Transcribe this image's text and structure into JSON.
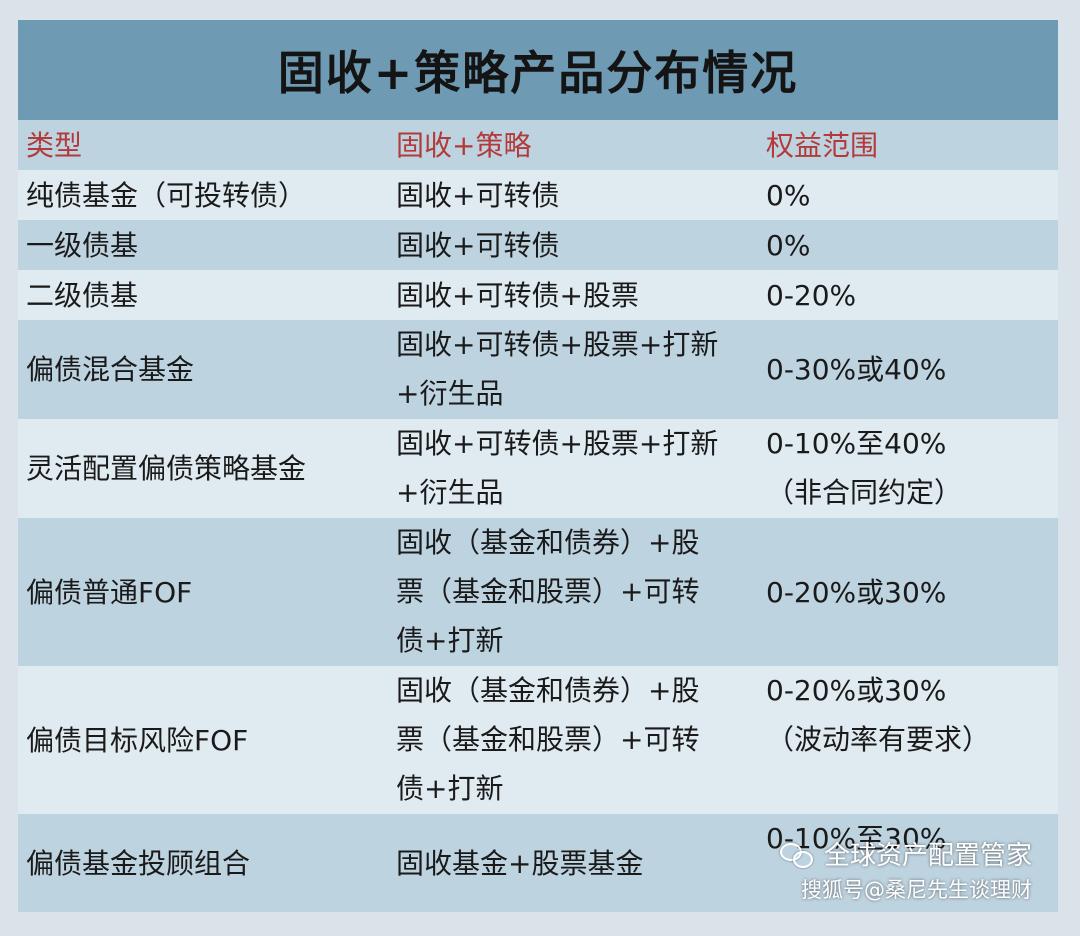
{
  "title": "固收+策略产品分布情况",
  "headers": [
    "类型",
    "固收+策略",
    "权益范围"
  ],
  "rows": [
    {
      "type": "纯债基金（可投转债）",
      "strategy": [
        "固收+可转债"
      ],
      "equity": [
        "0%"
      ]
    },
    {
      "type": "一级债基",
      "strategy": [
        "固收+可转债"
      ],
      "equity": [
        "0%"
      ]
    },
    {
      "type": "二级债基",
      "strategy": [
        "固收+可转债+股票"
      ],
      "equity": [
        "0-20%"
      ]
    },
    {
      "type": "偏债混合基金",
      "strategy": [
        "固收+可转债+股票+打新",
        "+衍生品"
      ],
      "equity": [
        "0-30%或40%"
      ]
    },
    {
      "type": "灵活配置偏债策略基金",
      "strategy": [
        "固收+可转债+股票+打新",
        "+衍生品"
      ],
      "equity": [
        "0-10%至40%",
        "（非合同约定）"
      ]
    },
    {
      "type": "偏债普通FOF",
      "strategy": [
        "固收（基金和债券）+股",
        "票（基金和股票）+可转",
        "债+打新"
      ],
      "equity": [
        "0-20%或30%"
      ]
    },
    {
      "type": "偏债目标风险FOF",
      "strategy": [
        "固收（基金和债券）+股",
        "票（基金和股票）+可转",
        "债+打新"
      ],
      "equity": [
        "0-20%或30%",
        "（波动率有要求）"
      ]
    },
    {
      "type": "偏债基金投顾组合",
      "strategy": [
        "固收基金+股票基金"
      ],
      "equity": [
        "0-10%至30%"
      ]
    }
  ],
  "watermark": {
    "line1": "全球资产配置管家",
    "line2": "搜狐号@桑尼先生谈理财",
    "icon": "wechat-icon"
  },
  "colors": {
    "title_bar": "#6f9ab4",
    "row_blue": "#bed3e0",
    "row_light": "#dfeaf1",
    "header_text": "#b23a3a"
  }
}
